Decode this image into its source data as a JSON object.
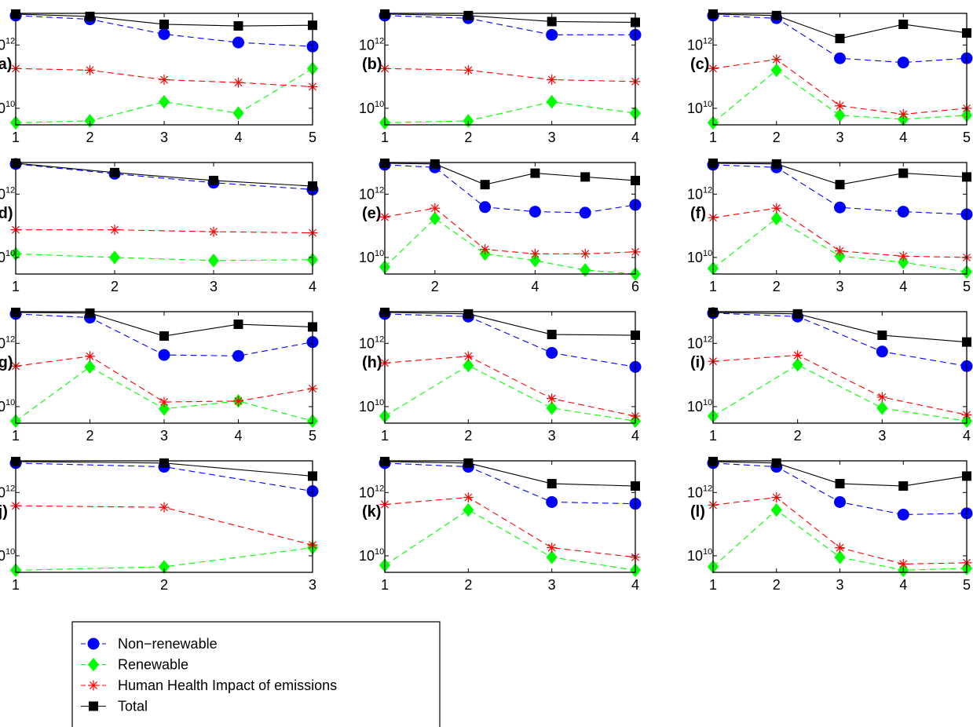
{
  "chart_data": {
    "type": "line",
    "yscale": "log",
    "ylim": [
      3000000000.0,
      10000000000000.0
    ],
    "ytick_labels": [
      {
        "value": 10000000000.0,
        "base": "10",
        "exp": "10"
      },
      {
        "value": 1000000000000.0,
        "base": "10",
        "exp": "12"
      }
    ],
    "legend": {
      "placement": "bottom-left",
      "entries": [
        {
          "key": "nonrenewable",
          "label": "Non−renewable",
          "color": "#0000ff",
          "marker": "circle",
          "dash": true
        },
        {
          "key": "renewable",
          "label": "Renewable",
          "color": "#00ff00",
          "marker": "diamond",
          "dash": true
        },
        {
          "key": "human_health",
          "label": "Human Health Impact of emissions",
          "color": "#ff0000",
          "marker": "star",
          "dash": true
        },
        {
          "key": "total",
          "label": "Total",
          "color": "#000000",
          "marker": "square",
          "dash": false
        }
      ]
    },
    "panels": [
      {
        "label": "(a)",
        "xlim": [
          1,
          5
        ],
        "xticks": [
          1,
          2,
          3,
          4,
          5
        ],
        "x": [
          1,
          2,
          3,
          4,
          5
        ],
        "series": {
          "total": [
            9500000000000.0,
            8000000000000.0,
            4500000000000.0,
            4000000000000.0,
            4200000000000.0
          ],
          "nonrenewable": [
            8500000000000.0,
            6500000000000.0,
            2200000000000.0,
            1200000000000.0,
            900000000000.0
          ],
          "renewable": [
            3500000000.0,
            4000000000.0,
            16000000000.0,
            7000000000.0,
            180000000000.0
          ],
          "human_health": [
            180000000000.0,
            160000000000.0,
            80000000000.0,
            65000000000.0,
            48000000000.0
          ]
        }
      },
      {
        "label": "(b)",
        "xlim": [
          1,
          4
        ],
        "xticks": [
          1,
          2,
          3,
          4
        ],
        "x": [
          1,
          2,
          3,
          4
        ],
        "series": {
          "total": [
            9500000000000.0,
            8500000000000.0,
            5500000000000.0,
            5200000000000.0
          ],
          "nonrenewable": [
            8500000000000.0,
            7000000000000.0,
            2100000000000.0,
            2100000000000.0
          ],
          "renewable": [
            3500000000.0,
            4000000000.0,
            16000000000.0,
            7000000000.0
          ],
          "human_health": [
            180000000000.0,
            160000000000.0,
            80000000000.0,
            70000000000.0
          ]
        }
      },
      {
        "label": "(c)",
        "xlim": [
          1,
          5
        ],
        "xticks": [
          1,
          2,
          3,
          4,
          5
        ],
        "x": [
          1,
          2,
          3,
          4,
          5
        ],
        "series": {
          "total": [
            9500000000000.0,
            8500000000000.0,
            1600000000000.0,
            4500000000000.0,
            2400000000000.0
          ],
          "nonrenewable": [
            8500000000000.0,
            7000000000000.0,
            380000000000.0,
            280000000000.0,
            380000000000.0
          ],
          "renewable": [
            3500000000.0,
            160000000000.0,
            6000000000.0,
            4500000000.0,
            6000000000.0
          ],
          "human_health": [
            180000000000.0,
            350000000000.0,
            12000000000.0,
            6500000000.0,
            10000000000.0
          ]
        }
      },
      {
        "label": "(d)",
        "xlim": [
          1,
          4
        ],
        "xticks": [
          1,
          2,
          3,
          4
        ],
        "x": [
          1,
          2,
          3,
          4
        ],
        "series": {
          "total": [
            9500000000000.0,
            4800000000000.0,
            2700000000000.0,
            1800000000000.0
          ],
          "nonrenewable": [
            9000000000000.0,
            4400000000000.0,
            2300000000000.0,
            1400000000000.0
          ],
          "renewable": [
            13000000000.0,
            10000000000.0,
            8000000000.0,
            8500000000.0
          ],
          "human_health": [
            75000000000.0,
            75000000000.0,
            65000000000.0,
            60000000000.0
          ]
        }
      },
      {
        "label": "(e)",
        "xlim": [
          1,
          6
        ],
        "xticks": [
          2,
          4,
          6
        ],
        "x": [
          1,
          2,
          3,
          4,
          5,
          6
        ],
        "series": {
          "total": [
            9500000000000.0,
            9000000000000.0,
            2000000000000.0,
            4600000000000.0,
            3500000000000.0,
            2700000000000.0
          ],
          "nonrenewable": [
            8500000000000.0,
            7000000000000.0,
            390000000000.0,
            280000000000.0,
            260000000000.0,
            460000000000.0
          ],
          "renewable": [
            5000000000.0,
            170000000000.0,
            13000000000.0,
            8000000000.0,
            4000000000.0,
            3000000000.0
          ],
          "human_health": [
            190000000000.0,
            360000000000.0,
            18000000000.0,
            13000000000.0,
            13000000000.0,
            15000000000.0
          ]
        }
      },
      {
        "label": "(f)",
        "xlim": [
          1,
          5
        ],
        "xticks": [
          1,
          2,
          3,
          4,
          5
        ],
        "x": [
          1,
          2,
          3,
          4,
          5
        ],
        "series": {
          "total": [
            9500000000000.0,
            9000000000000.0,
            2000000000000.0,
            4600000000000.0,
            3500000000000.0
          ],
          "nonrenewable": [
            8500000000000.0,
            7000000000000.0,
            380000000000.0,
            280000000000.0,
            230000000000.0
          ],
          "renewable": [
            4500000000.0,
            170000000000.0,
            11000000000.0,
            7000000000.0,
            3500000000.0
          ],
          "human_health": [
            180000000000.0,
            360000000000.0,
            16000000000.0,
            11000000000.0,
            10000000000.0
          ]
        }
      },
      {
        "label": "(g)",
        "xlim": [
          1,
          5
        ],
        "xticks": [
          1,
          2,
          3,
          4,
          5
        ],
        "x": [
          1,
          2,
          3,
          4,
          5
        ],
        "series": {
          "total": [
            9500000000000.0,
            9000000000000.0,
            1700000000000.0,
            4000000000000.0,
            3300000000000.0
          ],
          "nonrenewable": [
            8500000000000.0,
            6500000000000.0,
            430000000000.0,
            400000000000.0,
            1100000000000.0
          ],
          "renewable": [
            3500000000.0,
            180000000000.0,
            8500000000.0,
            15000000000.0,
            3500000000.0
          ],
          "human_health": [
            190000000000.0,
            390000000000.0,
            14000000000.0,
            15000000000.0,
            37000000000.0
          ]
        }
      },
      {
        "label": "(h)",
        "xlim": [
          1,
          4
        ],
        "xticks": [
          1,
          2,
          3,
          4
        ],
        "x": [
          1,
          2,
          3,
          4
        ],
        "series": {
          "total": [
            9500000000000.0,
            8500000000000.0,
            1900000000000.0,
            1800000000000.0
          ],
          "nonrenewable": [
            8500000000000.0,
            7000000000000.0,
            500000000000.0,
            180000000000.0
          ],
          "renewable": [
            5000000000.0,
            200000000000.0,
            9000000000.0,
            3500000000.0
          ],
          "human_health": [
            240000000000.0,
            390000000000.0,
            18000000000.0,
            5000000000.0
          ]
        }
      },
      {
        "label": "(i)",
        "xlim": [
          1,
          4
        ],
        "xticks": [
          1,
          2,
          3,
          4
        ],
        "x": [
          1,
          2,
          3,
          4
        ],
        "series": {
          "total": [
            9500000000000.0,
            8500000000000.0,
            1800000000000.0,
            1100000000000.0
          ],
          "nonrenewable": [
            9000000000000.0,
            7000000000000.0,
            550000000000.0,
            190000000000.0
          ],
          "renewable": [
            5000000000.0,
            210000000000.0,
            9000000000.0,
            3500000000.0
          ],
          "human_health": [
            270000000000.0,
            420000000000.0,
            20000000000.0,
            5500000000.0
          ]
        }
      },
      {
        "label": "(j)",
        "xlim": [
          1,
          3
        ],
        "xticks": [
          1,
          2,
          3
        ],
        "x": [
          1,
          2,
          3
        ],
        "series": {
          "total": [
            9500000000000.0,
            8500000000000.0,
            3300000000000.0
          ],
          "nonrenewable": [
            8500000000000.0,
            6500000000000.0,
            1100000000000.0
          ],
          "renewable": [
            3500000000.0,
            4500000000.0,
            18000000000.0
          ],
          "human_health": [
            380000000000.0,
            340000000000.0,
            22000000000.0
          ]
        }
      },
      {
        "label": "(k)",
        "xlim": [
          1,
          4
        ],
        "xticks": [
          1,
          2,
          3,
          4
        ],
        "x": [
          1,
          2,
          3,
          4
        ],
        "series": {
          "total": [
            9500000000000.0,
            8500000000000.0,
            1900000000000.0,
            1600000000000.0
          ],
          "nonrenewable": [
            8500000000000.0,
            6500000000000.0,
            500000000000.0,
            440000000000.0
          ],
          "renewable": [
            5000000000.0,
            280000000000.0,
            9000000000.0,
            3500000000.0
          ],
          "human_health": [
            420000000000.0,
            700000000000.0,
            18000000000.0,
            9000000000.0
          ]
        }
      },
      {
        "label": "(l)",
        "xlim": [
          1,
          5
        ],
        "xticks": [
          1,
          2,
          3,
          4,
          5
        ],
        "x": [
          1,
          2,
          3,
          4,
          5
        ],
        "series": {
          "total": [
            9500000000000.0,
            8500000000000.0,
            1900000000000.0,
            1600000000000.0,
            3300000000000.0
          ],
          "nonrenewable": [
            8500000000000.0,
            6500000000000.0,
            500000000000.0,
            200000000000.0,
            220000000000.0
          ],
          "renewable": [
            4500000000.0,
            280000000000.0,
            9000000000.0,
            3500000000.0,
            4000000000.0
          ],
          "human_health": [
            400000000000.0,
            700000000000.0,
            18000000000.0,
            5500000000.0,
            6000000000.0
          ]
        }
      }
    ]
  }
}
